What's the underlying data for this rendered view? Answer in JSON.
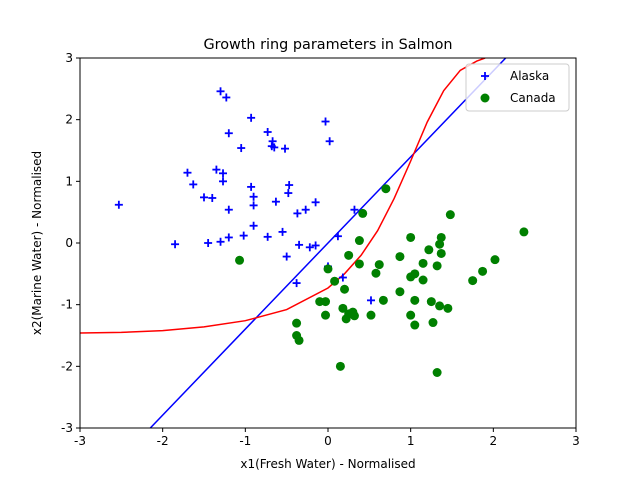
{
  "chart_data": {
    "type": "scatter",
    "title": "Growth ring parameters in Salmon",
    "xlabel": "x1(Fresh Water) - Normalised",
    "ylabel": "x2(Marine Water) - Normalised",
    "xlim": [
      -3,
      3
    ],
    "ylim": [
      -3,
      3
    ],
    "xticks": [
      "-3",
      "-2",
      "-1",
      "0",
      "1",
      "2",
      "3"
    ],
    "yticks": [
      "-3",
      "-2",
      "-1",
      "0",
      "1",
      "2",
      "3"
    ],
    "grid": false,
    "legend": {
      "placement": "top-right"
    },
    "series": [
      {
        "name": "Alaska",
        "marker": "plus",
        "color": "#0000ff",
        "points": [
          [
            -2.53,
            0.62
          ],
          [
            -1.85,
            -0.02
          ],
          [
            -1.7,
            1.14
          ],
          [
            -1.63,
            0.95
          ],
          [
            -1.5,
            0.74
          ],
          [
            -1.45,
            0.0
          ],
          [
            -1.4,
            0.73
          ],
          [
            -1.35,
            1.19
          ],
          [
            -1.3,
            2.46
          ],
          [
            -1.3,
            0.02
          ],
          [
            -1.27,
            1.13
          ],
          [
            -1.27,
            1.0
          ],
          [
            -1.23,
            2.36
          ],
          [
            -1.2,
            1.78
          ],
          [
            -1.2,
            0.54
          ],
          [
            -1.2,
            0.09
          ],
          [
            -1.05,
            1.54
          ],
          [
            -1.02,
            0.12
          ],
          [
            -0.93,
            2.03
          ],
          [
            -0.93,
            0.91
          ],
          [
            -0.9,
            0.75
          ],
          [
            -0.9,
            0.61
          ],
          [
            -0.9,
            0.28
          ],
          [
            -0.73,
            1.8
          ],
          [
            -0.73,
            0.1
          ],
          [
            -0.68,
            1.57
          ],
          [
            -0.67,
            1.65
          ],
          [
            -0.65,
            1.55
          ],
          [
            -0.63,
            0.67
          ],
          [
            -0.55,
            0.18
          ],
          [
            -0.52,
            1.53
          ],
          [
            -0.5,
            -0.22
          ],
          [
            -0.48,
            0.81
          ],
          [
            -0.47,
            0.94
          ],
          [
            -0.37,
            0.48
          ],
          [
            -0.35,
            -0.03
          ],
          [
            -0.38,
            -0.65
          ],
          [
            -0.27,
            0.54
          ],
          [
            -0.22,
            -0.07
          ],
          [
            -0.15,
            -0.04
          ],
          [
            -0.15,
            0.66
          ],
          [
            -0.03,
            1.97
          ],
          [
            0.02,
            1.65
          ],
          [
            0.12,
            0.11
          ],
          [
            0.18,
            -0.56
          ],
          [
            0.32,
            0.54
          ],
          [
            0.52,
            -0.93
          ],
          [
            0.0,
            -0.38
          ]
        ]
      },
      {
        "name": "Canada",
        "marker": "circle",
        "color": "#008000",
        "points": [
          [
            -1.07,
            -0.28
          ],
          [
            -0.38,
            -1.3
          ],
          [
            -0.38,
            -1.5
          ],
          [
            -0.35,
            -1.58
          ],
          [
            -0.1,
            -0.95
          ],
          [
            -0.03,
            -0.95
          ],
          [
            -0.03,
            -1.17
          ],
          [
            0.0,
            -0.42
          ],
          [
            0.08,
            -0.62
          ],
          [
            0.15,
            -2.0
          ],
          [
            0.18,
            -1.06
          ],
          [
            0.2,
            -0.75
          ],
          [
            0.22,
            -1.23
          ],
          [
            0.25,
            -0.2
          ],
          [
            0.25,
            -1.15
          ],
          [
            0.3,
            -1.12
          ],
          [
            0.32,
            -1.18
          ],
          [
            0.38,
            0.04
          ],
          [
            0.38,
            -0.34
          ],
          [
            0.42,
            0.48
          ],
          [
            0.52,
            -1.17
          ],
          [
            0.58,
            -0.49
          ],
          [
            0.62,
            -0.35
          ],
          [
            0.67,
            -0.93
          ],
          [
            0.7,
            0.88
          ],
          [
            0.87,
            -0.22
          ],
          [
            0.87,
            -0.79
          ],
          [
            1.0,
            -1.17
          ],
          [
            1.0,
            -0.55
          ],
          [
            1.0,
            0.09
          ],
          [
            1.05,
            -0.5
          ],
          [
            1.05,
            -0.93
          ],
          [
            1.05,
            -1.33
          ],
          [
            1.15,
            -0.33
          ],
          [
            1.15,
            -0.6
          ],
          [
            1.22,
            -0.11
          ],
          [
            1.25,
            -0.95
          ],
          [
            1.27,
            -1.29
          ],
          [
            1.32,
            -0.37
          ],
          [
            1.32,
            -2.1
          ],
          [
            1.35,
            -0.02
          ],
          [
            1.35,
            -1.02
          ],
          [
            1.37,
            0.09
          ],
          [
            1.37,
            -0.17
          ],
          [
            1.45,
            -1.06
          ],
          [
            1.48,
            0.46
          ],
          [
            1.75,
            -0.61
          ],
          [
            1.87,
            -0.46
          ],
          [
            2.02,
            -0.27
          ],
          [
            2.37,
            0.18
          ]
        ]
      }
    ],
    "decision_boundaries": [
      {
        "kind": "linear",
        "color": "#0000ff",
        "x": [
          -2.15,
          2.15
        ],
        "y": [
          -3.0,
          3.0
        ]
      },
      {
        "kind": "curve",
        "color": "#ff0000",
        "x": [
          -3.0,
          -2.5,
          -2.0,
          -1.5,
          -1.0,
          -0.5,
          0.0,
          0.2,
          0.4,
          0.6,
          0.8,
          1.0,
          1.2,
          1.4,
          1.6,
          1.8,
          1.9
        ],
        "y": [
          -1.46,
          -1.45,
          -1.42,
          -1.36,
          -1.26,
          -1.08,
          -0.73,
          -0.5,
          -0.2,
          0.2,
          0.72,
          1.33,
          1.96,
          2.47,
          2.8,
          2.95,
          3.0
        ]
      }
    ]
  }
}
